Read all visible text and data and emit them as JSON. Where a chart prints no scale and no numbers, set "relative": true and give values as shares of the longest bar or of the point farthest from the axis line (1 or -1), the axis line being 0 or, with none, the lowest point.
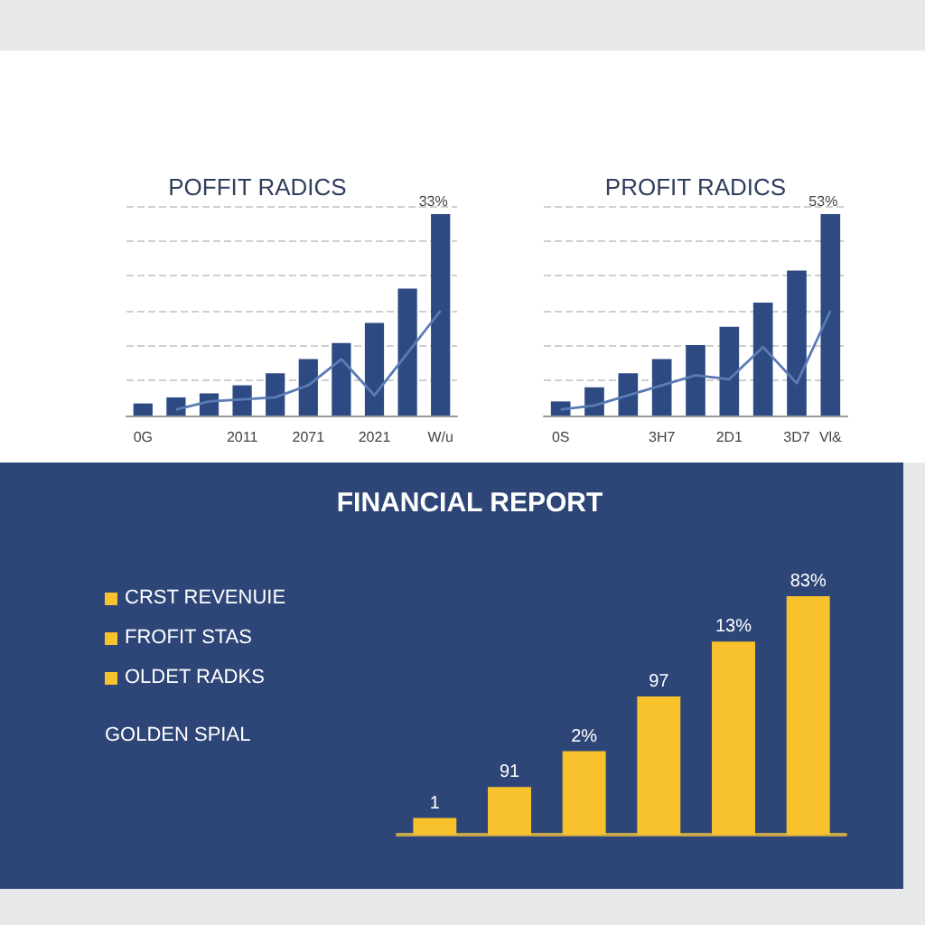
{
  "chart_data": [
    {
      "type": "bar",
      "title": "POFFIT RADICS",
      "relative": true,
      "categories": [
        "0G",
        null,
        null,
        "2011",
        null,
        "2071",
        null,
        "2021",
        null,
        "W/u"
      ],
      "series": [
        {
          "color": "#2e4a82",
          "values": [
            0.06,
            0.09,
            0.11,
            0.15,
            0.21,
            0.28,
            0.36,
            0.46,
            0.63,
            1
          ]
        },
        {
          "type": "line",
          "color": "#5b7bb5",
          "marker": "none",
          "values": [
            null,
            0.03,
            0.07,
            0.08,
            0.09,
            0.15,
            0.28,
            0.1,
            0.31,
            0.52
          ]
        }
      ],
      "grid": "y",
      "annotations": [
        {
          "text": "33%",
          "x": "W/u",
          "y": 1
        }
      ]
    },
    {
      "type": "bar",
      "title": "PROFIT RADICS",
      "relative": true,
      "categories": [
        "0S",
        null,
        null,
        "3H7",
        null,
        "2D1",
        null,
        "3D7",
        "Vl&"
      ],
      "series": [
        {
          "color": "#2e4a82",
          "values": [
            0.07,
            0.14,
            0.21,
            0.28,
            0.35,
            0.44,
            0.56,
            0.72,
            1
          ]
        },
        {
          "type": "line",
          "color": "#5b7bb5",
          "marker": "none",
          "values": [
            0.03,
            0.05,
            0.1,
            0.15,
            0.2,
            0.18,
            0.34,
            0.16,
            0.52
          ]
        }
      ],
      "grid": "y",
      "annotations": [
        {
          "text": "53%",
          "x": "Vl&",
          "y": 1
        }
      ]
    },
    {
      "type": "bar",
      "title": "FINANCIAL REPORT",
      "relative": true,
      "categories": [
        null,
        null,
        null,
        null,
        null,
        null
      ],
      "series": [
        {
          "color": "#f7c22b",
          "values": [
            0.07,
            0.2,
            0.35,
            0.58,
            0.81,
            1
          ]
        }
      ],
      "grid": false,
      "annotations": [
        "CRST REVENUIE",
        "FROFIT STAS",
        "OLDET RADKS",
        "GOLDEN SPIAL",
        {
          "text": "1",
          "y": 0.07
        },
        {
          "text": "91",
          "y": 0.2
        },
        {
          "text": "2%",
          "y": 0.35
        },
        {
          "text": "97",
          "y": 0.58
        },
        {
          "text": "13%",
          "y": 0.81
        },
        {
          "text": "83%",
          "y": 1
        }
      ]
    }
  ]
}
